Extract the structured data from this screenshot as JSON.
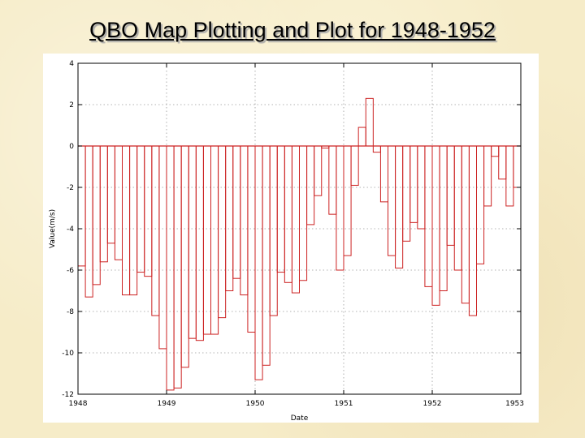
{
  "slide": {
    "title": "QBO Map Plotting and Plot for 1948-1952"
  },
  "chart_data": {
    "type": "bar",
    "style": "step-histogram outline",
    "xlabel": "Date",
    "ylabel": "Value(m/s)",
    "xlim": [
      1948,
      1953
    ],
    "ylim": [
      -12,
      4
    ],
    "xticks": [
      1948,
      1949,
      1950,
      1951,
      1952,
      1953
    ],
    "yticks": [
      4,
      2,
      0,
      -2,
      -4,
      -6,
      -8,
      -10,
      -12
    ],
    "grid": true,
    "series_color": "#cc2222",
    "x": [
      "1948-01",
      "1948-02",
      "1948-03",
      "1948-04",
      "1948-05",
      "1948-06",
      "1948-07",
      "1948-08",
      "1948-09",
      "1948-10",
      "1948-11",
      "1948-12",
      "1949-01",
      "1949-02",
      "1949-03",
      "1949-04",
      "1949-05",
      "1949-06",
      "1949-07",
      "1949-08",
      "1949-09",
      "1949-10",
      "1949-11",
      "1949-12",
      "1950-01",
      "1950-02",
      "1950-03",
      "1950-04",
      "1950-05",
      "1950-06",
      "1950-07",
      "1950-08",
      "1950-09",
      "1950-10",
      "1950-11",
      "1950-12",
      "1951-01",
      "1951-02",
      "1951-03",
      "1951-04",
      "1951-05",
      "1951-06",
      "1951-07",
      "1951-08",
      "1951-09",
      "1951-10",
      "1951-11",
      "1951-12",
      "1952-01",
      "1952-02",
      "1952-03",
      "1952-04",
      "1952-05",
      "1952-06",
      "1952-07",
      "1952-08",
      "1952-09",
      "1952-10",
      "1952-11",
      "1952-12"
    ],
    "values": [
      -5.8,
      -7.3,
      -6.7,
      -5.6,
      -4.7,
      -5.5,
      -7.2,
      -7.2,
      -6.1,
      -6.3,
      -8.2,
      -9.8,
      -11.8,
      -11.7,
      -10.7,
      -9.3,
      -9.4,
      -9.1,
      -9.1,
      -8.3,
      -7.0,
      -6.4,
      -7.2,
      -9.0,
      -11.3,
      -10.6,
      -8.2,
      -6.1,
      -6.6,
      -7.1,
      -6.5,
      -3.8,
      -2.4,
      -0.1,
      -3.3,
      -6.0,
      -5.3,
      -1.9,
      0.9,
      2.3,
      -0.3,
      -2.7,
      -5.3,
      -5.9,
      -4.6,
      -3.7,
      -4.0,
      -6.8,
      -7.7,
      -7.0,
      -4.8,
      -6.0,
      -7.6,
      -8.2,
      -5.7,
      -2.9,
      -0.5,
      -1.6,
      -2.9,
      -2.0
    ]
  }
}
